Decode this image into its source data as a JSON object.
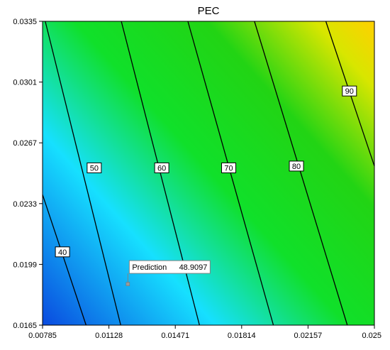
{
  "chart_data": {
    "type": "contour",
    "title": "PEC",
    "xlabel": "",
    "ylabel": "",
    "xlim": [
      0.00785,
      0.025
    ],
    "ylim": [
      0.0165,
      0.0335
    ],
    "x_ticks": [
      "0.00785",
      "0.01128",
      "0.01471",
      "0.01814",
      "0.02157",
      "0.025"
    ],
    "x_tick_values": [
      0.00785,
      0.01128,
      0.01471,
      0.01814,
      0.02157,
      0.025
    ],
    "y_ticks": [
      "0.0165",
      "0.0199",
      "0.0233",
      "0.0267",
      "0.0301",
      "0.0335"
    ],
    "y_tick_values": [
      0.0165,
      0.0199,
      0.0233,
      0.0267,
      0.0301,
      0.0335
    ],
    "contours": [
      {
        "level": "40",
        "line": [
          [
            0.00785,
            0.0238
          ],
          [
            0.0101,
            0.0165
          ]
        ],
        "label_at": [
          0.00888,
          0.0206
        ]
      },
      {
        "level": "50",
        "line": [
          [
            0.00799,
            0.0335
          ],
          [
            0.01189,
            0.0165
          ]
        ],
        "label_at": [
          0.01052,
          0.0253
        ]
      },
      {
        "level": "60",
        "line": [
          [
            0.01192,
            0.0335
          ],
          [
            0.01596,
            0.0165
          ]
        ],
        "label_at": [
          0.01401,
          0.0253
        ]
      },
      {
        "level": "70",
        "line": [
          [
            0.01536,
            0.0335
          ],
          [
            0.01978,
            0.0165
          ]
        ],
        "label_at": [
          0.01747,
          0.0253
        ]
      },
      {
        "level": "80",
        "line": [
          [
            0.0188,
            0.0335
          ],
          [
            0.0236,
            0.0165
          ]
        ],
        "label_at": [
          0.02097,
          0.0254
        ]
      },
      {
        "level": "90",
        "line": [
          [
            0.02249,
            0.0335
          ],
          [
            0.025,
            0.0254
          ]
        ],
        "label_at": [
          0.02371,
          0.0296
        ]
      }
    ],
    "color_scale": {
      "low": "#0a4ee0",
      "mid_low": "#16e0ff",
      "mid": "#10e020",
      "high": "#f2e000",
      "highest": "#ffd400"
    },
    "prediction": {
      "label": "Prediction",
      "value": "48.9097",
      "x": 0.01226,
      "y": 0.0188
    }
  }
}
